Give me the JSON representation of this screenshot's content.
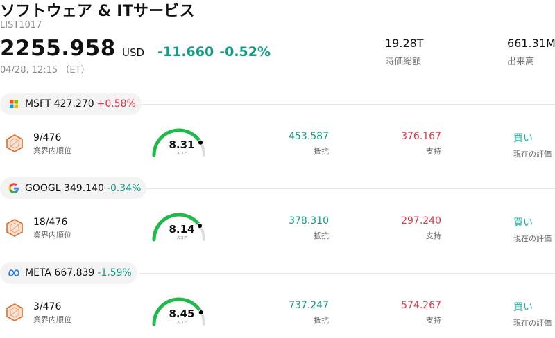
{
  "header": {
    "title": "ソフトウェア & ITサービス",
    "code": "LIST1017",
    "price": "2255.958",
    "currency": "USD",
    "change": "-11.660",
    "change_pct": "-0.52%",
    "timestamp": "04/28, 12:15 （ET）"
  },
  "stats": [
    {
      "value": "19.28T",
      "label": "時価総額"
    },
    {
      "value": "661.31M",
      "label": "出来高"
    }
  ],
  "colors": {
    "positive": "#e0384a",
    "negative": "#139b86",
    "gauge": "#1fba4a",
    "buy": "#1eb4a0"
  },
  "stocks": [
    {
      "logo": "microsoft-logo-icon",
      "ticker_price": "MSFT 427.270",
      "pct": "+0.58%",
      "rank": "9/476",
      "rank_label": "業界内順位",
      "score": "8.31",
      "score_value": 8.31,
      "score_label": "スコア",
      "resistance": "453.587",
      "resistance_label": "抵抗",
      "support": "376.167",
      "support_label": "支持",
      "rating": "買い",
      "rating_label": "現在の評価"
    },
    {
      "logo": "google-logo-icon",
      "ticker_price": "GOOGL 349.140",
      "pct": "-0.34%",
      "rank": "18/476",
      "rank_label": "業界内順位",
      "score": "8.14",
      "score_value": 8.14,
      "score_label": "スコア",
      "resistance": "378.310",
      "resistance_label": "抵抗",
      "support": "297.240",
      "support_label": "支持",
      "rating": "買い",
      "rating_label": "現在の評価"
    },
    {
      "logo": "meta-logo-icon",
      "ticker_price": "META 667.839",
      "pct": "-1.59%",
      "rank": "3/476",
      "rank_label": "業界内順位",
      "score": "8.45",
      "score_value": 8.45,
      "score_label": "スコア",
      "resistance": "737.247",
      "resistance_label": "抵抗",
      "support": "574.267",
      "support_label": "支持",
      "rating": "買い",
      "rating_label": "現在の評価"
    }
  ]
}
